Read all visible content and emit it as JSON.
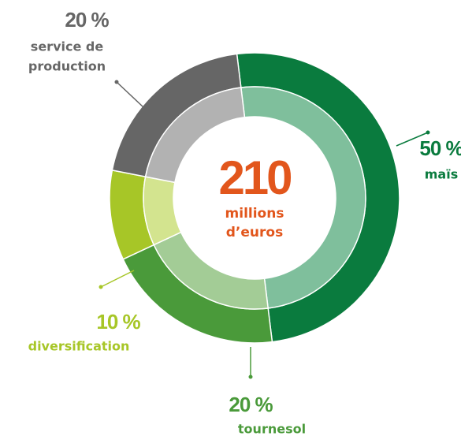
{
  "chart_data": {
    "type": "donut",
    "center_value": "210",
    "center_label": [
      "millions",
      "d’euros"
    ],
    "categories": [
      "maïs",
      "tournesol",
      "diversification",
      [
        "service de",
        "production"
      ]
    ],
    "values": [
      50,
      20,
      10,
      20
    ],
    "value_labels": [
      "50 %",
      "20 %",
      "10 %",
      "20 %"
    ],
    "colors": [
      "#0a7b3e",
      "#4a9a3a",
      "#a7c627",
      "#666666"
    ],
    "inner_colors": [
      "#7fbf9c",
      "#a3cc96",
      "#d3e48f",
      "#b2b2b2"
    ]
  }
}
